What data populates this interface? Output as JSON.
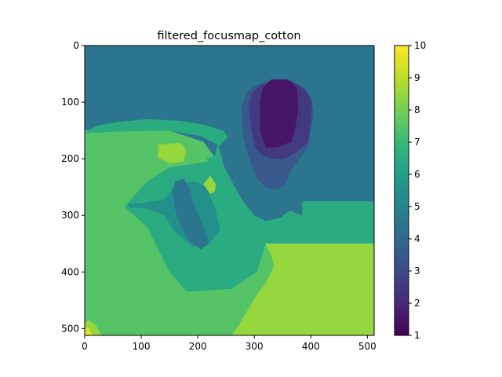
{
  "chart_data": {
    "type": "heatmap",
    "title": "filtered_focusmap_cotton",
    "xlabel": "",
    "ylabel": "",
    "xlim": [
      0,
      512
    ],
    "ylim": [
      512,
      0
    ],
    "x_ticks": [
      0,
      100,
      200,
      300,
      400,
      500
    ],
    "y_ticks": [
      0,
      100,
      200,
      300,
      400,
      500
    ],
    "colormap": "viridis",
    "colorbar": {
      "range": [
        1,
        10
      ],
      "ticks": [
        1,
        2,
        3,
        4,
        5,
        6,
        7,
        8,
        9,
        10
      ]
    },
    "levels": [
      {
        "value": 1,
        "color": "#440154"
      },
      {
        "value": 2,
        "color": "#472d7b"
      },
      {
        "value": 3,
        "color": "#3b528b"
      },
      {
        "value": 4,
        "color": "#2c728e"
      },
      {
        "value": 5,
        "color": "#3b6e8e"
      },
      {
        "value": 6,
        "color": "#21918c"
      },
      {
        "value": 7,
        "color": "#2db27d"
      },
      {
        "value": 8,
        "color": "#6ece58"
      },
      {
        "value": 9,
        "color": "#b5de2b"
      },
      {
        "value": 10,
        "color": "#fde725"
      }
    ],
    "regions": [
      {
        "value": 4.5,
        "polygon": [
          [
            0,
            0
          ],
          [
            512,
            0
          ],
          [
            512,
            512
          ],
          [
            0,
            512
          ]
        ]
      },
      {
        "value": 7.5,
        "polygon": [
          [
            0,
            150
          ],
          [
            150,
            150
          ],
          [
            210,
            170
          ],
          [
            240,
            210
          ],
          [
            290,
            250
          ],
          [
            330,
            300
          ],
          [
            390,
            300
          ],
          [
            512,
            300
          ],
          [
            512,
            512
          ],
          [
            0,
            512
          ]
        ]
      },
      {
        "value": 6.5,
        "polygon": [
          [
            20,
            142
          ],
          [
            60,
            135
          ],
          [
            110,
            130
          ],
          [
            170,
            133
          ],
          [
            210,
            140
          ],
          [
            245,
            150
          ],
          [
            262,
            175
          ],
          [
            285,
            210
          ],
          [
            320,
            265
          ],
          [
            345,
            285
          ],
          [
            385,
            300
          ],
          [
            385,
            275
          ],
          [
            512,
            275
          ],
          [
            512,
            350
          ],
          [
            320,
            350
          ],
          [
            305,
            400
          ],
          [
            260,
            430
          ],
          [
            180,
            435
          ],
          [
            150,
            400
          ],
          [
            130,
            360
          ],
          [
            110,
            320
          ],
          [
            70,
            285
          ],
          [
            110,
            240
          ],
          [
            150,
            215
          ],
          [
            200,
            205
          ],
          [
            230,
            195
          ],
          [
            235,
            175
          ],
          [
            205,
            160
          ],
          [
            150,
            150
          ],
          [
            60,
            152
          ],
          [
            0,
            155
          ]
        ]
      },
      {
        "value": 7.5,
        "polygon": [
          [
            0,
            170
          ],
          [
            120,
            168
          ],
          [
            170,
            168
          ],
          [
            200,
            185
          ],
          [
            220,
            205
          ],
          [
            150,
            215
          ],
          [
            110,
            240
          ],
          [
            70,
            285
          ],
          [
            110,
            320
          ],
          [
            130,
            360
          ],
          [
            150,
            400
          ],
          [
            180,
            435
          ],
          [
            260,
            430
          ],
          [
            305,
            400
          ],
          [
            320,
            350
          ],
          [
            512,
            350
          ],
          [
            512,
            512
          ],
          [
            0,
            512
          ]
        ]
      },
      {
        "value": 5.5,
        "polygon": [
          [
            75,
            280
          ],
          [
            100,
            278
          ],
          [
            140,
            272
          ],
          [
            150,
            260
          ],
          [
            160,
            245
          ],
          [
            195,
            240
          ],
          [
            215,
            250
          ],
          [
            230,
            285
          ],
          [
            240,
            325
          ],
          [
            220,
            350
          ],
          [
            190,
            355
          ],
          [
            160,
            330
          ],
          [
            140,
            300
          ],
          [
            110,
            288
          ],
          [
            80,
            286
          ]
        ]
      },
      {
        "value": 4.5,
        "polygon": [
          [
            160,
            240
          ],
          [
            175,
            235
          ],
          [
            185,
            250
          ],
          [
            195,
            285
          ],
          [
            210,
            320
          ],
          [
            220,
            350
          ],
          [
            205,
            360
          ],
          [
            185,
            345
          ],
          [
            170,
            320
          ],
          [
            160,
            290
          ],
          [
            155,
            260
          ]
        ]
      },
      {
        "value": 4.5,
        "polygon": [
          [
            237,
            178
          ],
          [
            255,
            160
          ],
          [
            265,
            130
          ],
          [
            275,
            100
          ],
          [
            285,
            80
          ],
          [
            305,
            68
          ],
          [
            340,
            55
          ],
          [
            380,
            58
          ],
          [
            400,
            72
          ],
          [
            412,
            95
          ],
          [
            415,
            115
          ],
          [
            405,
            140
          ],
          [
            395,
            165
          ],
          [
            390,
            200
          ],
          [
            385,
            250
          ],
          [
            380,
            275
          ],
          [
            365,
            290
          ],
          [
            345,
            305
          ],
          [
            320,
            310
          ],
          [
            300,
            300
          ],
          [
            280,
            275
          ],
          [
            260,
            240
          ],
          [
            245,
            210
          ]
        ]
      },
      {
        "value": 3.5,
        "polygon": [
          [
            278,
            108
          ],
          [
            285,
            85
          ],
          [
            300,
            72
          ],
          [
            325,
            62
          ],
          [
            360,
            62
          ],
          [
            385,
            72
          ],
          [
            400,
            90
          ],
          [
            405,
            120
          ],
          [
            400,
            150
          ],
          [
            395,
            180
          ],
          [
            380,
            200
          ],
          [
            365,
            220
          ],
          [
            355,
            245
          ],
          [
            340,
            255
          ],
          [
            320,
            250
          ],
          [
            305,
            235
          ],
          [
            295,
            210
          ],
          [
            285,
            180
          ],
          [
            278,
            145
          ]
        ]
      },
      {
        "value": 2.5,
        "polygon": [
          [
            290,
            110
          ],
          [
            295,
            85
          ],
          [
            310,
            70
          ],
          [
            335,
            62
          ],
          [
            365,
            62
          ],
          [
            390,
            78
          ],
          [
            402,
            100
          ],
          [
            400,
            135
          ],
          [
            395,
            170
          ],
          [
            375,
            188
          ],
          [
            355,
            200
          ],
          [
            335,
            200
          ],
          [
            315,
            195
          ],
          [
            302,
            180
          ],
          [
            295,
            150
          ]
        ]
      },
      {
        "value": 1.5,
        "polygon": [
          [
            310,
            100
          ],
          [
            315,
            75
          ],
          [
            330,
            60
          ],
          [
            360,
            60
          ],
          [
            375,
            75
          ],
          [
            378,
            110
          ],
          [
            372,
            150
          ],
          [
            365,
            170
          ],
          [
            340,
            180
          ],
          [
            320,
            180
          ],
          [
            310,
            150
          ]
        ]
      },
      {
        "value": 8.5,
        "polygon": [
          [
            320,
            350
          ],
          [
            512,
            350
          ],
          [
            512,
            512
          ],
          [
            260,
            512
          ],
          [
            275,
            490
          ],
          [
            290,
            465
          ],
          [
            305,
            440
          ],
          [
            320,
            420
          ],
          [
            335,
            390
          ],
          [
            330,
            370
          ]
        ]
      },
      {
        "value": 8.5,
        "polygon": [
          [
            130,
            175
          ],
          [
            170,
            172
          ],
          [
            180,
            185
          ],
          [
            175,
            205
          ],
          [
            150,
            208
          ],
          [
            130,
            198
          ]
        ]
      },
      {
        "value": 8.5,
        "polygon": [
          [
            210,
            245
          ],
          [
            222,
            230
          ],
          [
            232,
            245
          ],
          [
            230,
            258
          ],
          [
            222,
            262
          ]
        ]
      },
      {
        "value": 8.5,
        "polygon": [
          [
            0,
            490
          ],
          [
            8,
            485
          ],
          [
            20,
            495
          ],
          [
            30,
            512
          ],
          [
            0,
            512
          ]
        ]
      },
      {
        "value": 9.5,
        "polygon": [
          [
            0,
            500
          ],
          [
            6,
            498
          ],
          [
            14,
            512
          ],
          [
            0,
            512
          ]
        ]
      }
    ]
  }
}
